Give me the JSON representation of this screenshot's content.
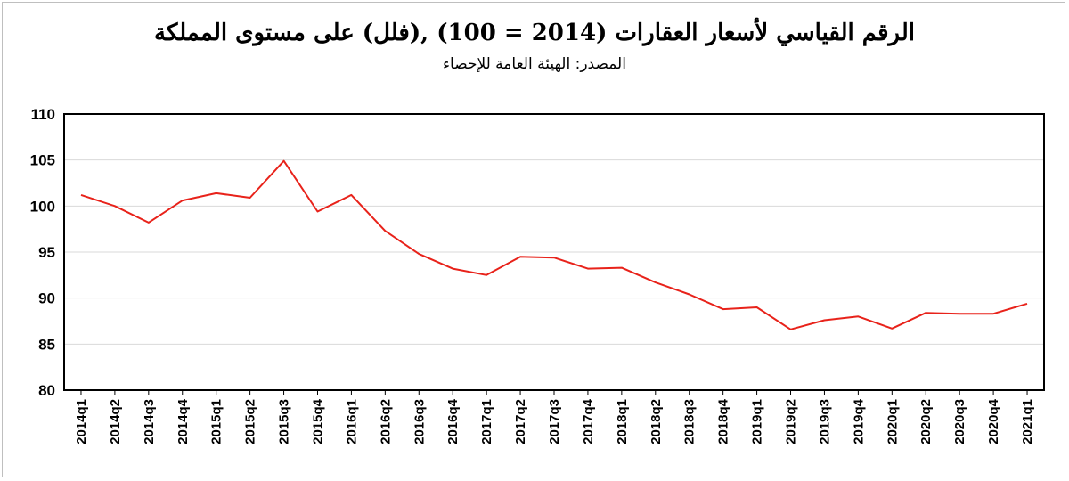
{
  "chart_data": {
    "type": "line",
    "title": "الرقم القياسي لأسعار العقارات (2014 = 100) ,(فلل) على مستوى المملكة",
    "subtitle": "المصدر: الهيئة العامة للإحصاء",
    "xlabel": "",
    "ylabel": "",
    "ylim": [
      80,
      110
    ],
    "yticks": [
      80,
      85,
      90,
      95,
      100,
      105,
      110
    ],
    "grid": true,
    "legend": "none",
    "line_color": "#e8221a",
    "categories": [
      "2014q1",
      "2014q2",
      "2014q3",
      "2014q4",
      "2015q1",
      "2015q2",
      "2015q3",
      "2015q4",
      "2016q1",
      "2016q2",
      "2016q3",
      "2016q4",
      "2017q1",
      "2017q2",
      "2017q3",
      "2017q4",
      "2018q1",
      "2018q2",
      "2018q3",
      "2018q4",
      "2019q1",
      "2019q2",
      "2019q3",
      "2019q4",
      "2020q1",
      "2020q2",
      "2020q3",
      "2020q4",
      "2021q1"
    ],
    "series": [
      {
        "values": [
          101.2,
          100.0,
          98.2,
          100.6,
          101.4,
          100.9,
          104.9,
          99.4,
          101.2,
          97.3,
          94.8,
          93.2,
          92.5,
          94.5,
          94.4,
          93.2,
          93.3,
          91.7,
          90.4,
          88.8,
          89.0,
          86.6,
          87.6,
          88.0,
          86.7,
          88.4,
          88.3,
          88.3,
          89.4
        ]
      }
    ]
  }
}
